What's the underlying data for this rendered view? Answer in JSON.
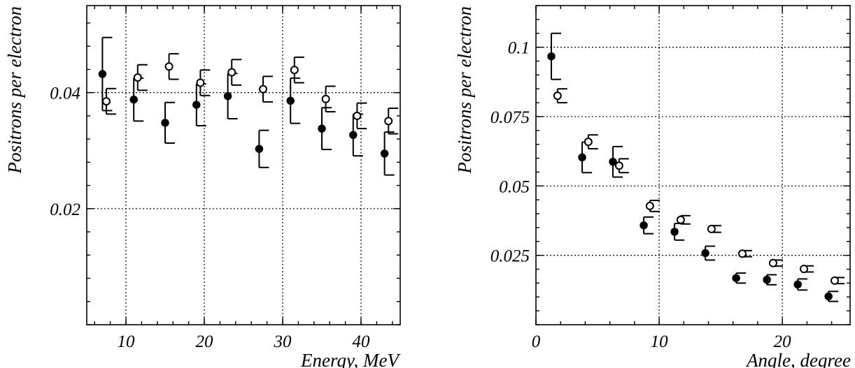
{
  "chart_data": [
    {
      "type": "scatter",
      "title": "",
      "xlabel": "Energy, MeV",
      "ylabel": "Positrons per electron",
      "xlim": [
        5,
        45
      ],
      "ylim": [
        0,
        0.055
      ],
      "x_ticks": [
        10,
        20,
        30,
        40
      ],
      "x_tick_labels": [
        "10",
        "20",
        "30",
        "40"
      ],
      "y_ticks": [
        0.02,
        0.04
      ],
      "y_tick_labels": [
        "0.02",
        "0.04"
      ],
      "grid": true,
      "series": [
        {
          "marker": "filled-circle",
          "points": [
            {
              "x": 7.0,
              "y": 0.0432,
              "err_up": 0.0063,
              "err_down": 0.0063
            },
            {
              "x": 11.0,
              "y": 0.0388,
              "err_up": 0.0037,
              "err_down": 0.0037
            },
            {
              "x": 15.0,
              "y": 0.0348,
              "err_up": 0.0035,
              "err_down": 0.0035
            },
            {
              "x": 19.0,
              "y": 0.0379,
              "err_up": 0.0036,
              "err_down": 0.0036
            },
            {
              "x": 23.0,
              "y": 0.0394,
              "err_up": 0.0039,
              "err_down": 0.0039
            },
            {
              "x": 27.0,
              "y": 0.0303,
              "err_up": 0.0032,
              "err_down": 0.0032
            },
            {
              "x": 31.0,
              "y": 0.0386,
              "err_up": 0.0039,
              "err_down": 0.0039
            },
            {
              "x": 35.0,
              "y": 0.0338,
              "err_up": 0.0036,
              "err_down": 0.0036
            },
            {
              "x": 39.0,
              "y": 0.0327,
              "err_up": 0.0036,
              "err_down": 0.0036
            },
            {
              "x": 43.0,
              "y": 0.0295,
              "err_up": 0.0037,
              "err_down": 0.0037
            }
          ]
        },
        {
          "marker": "open-circle",
          "points": [
            {
              "x": 7.5,
              "y": 0.0385,
              "err_up": 0.0022,
              "err_down": 0.0022
            },
            {
              "x": 11.5,
              "y": 0.0426,
              "err_up": 0.0022,
              "err_down": 0.0022
            },
            {
              "x": 15.5,
              "y": 0.0445,
              "err_up": 0.0022,
              "err_down": 0.0022
            },
            {
              "x": 19.5,
              "y": 0.0417,
              "err_up": 0.0022,
              "err_down": 0.0022
            },
            {
              "x": 23.5,
              "y": 0.0435,
              "err_up": 0.0022,
              "err_down": 0.0022
            },
            {
              "x": 27.5,
              "y": 0.0406,
              "err_up": 0.0022,
              "err_down": 0.0022
            },
            {
              "x": 31.5,
              "y": 0.0439,
              "err_up": 0.0022,
              "err_down": 0.0022
            },
            {
              "x": 35.5,
              "y": 0.0389,
              "err_up": 0.0022,
              "err_down": 0.0022
            },
            {
              "x": 39.5,
              "y": 0.036,
              "err_up": 0.0022,
              "err_down": 0.0022
            },
            {
              "x": 43.5,
              "y": 0.0351,
              "err_up": 0.0022,
              "err_down": 0.0022
            }
          ]
        }
      ]
    },
    {
      "type": "scatter",
      "title": "",
      "xlabel": "Angle, degree",
      "ylabel": "Positrons per electron",
      "xlim": [
        0,
        25.5
      ],
      "ylim": [
        0,
        0.115
      ],
      "x_ticks": [
        0,
        10,
        20
      ],
      "x_tick_labels": [
        "0",
        "10",
        "20"
      ],
      "y_ticks": [
        0.025,
        0.05,
        0.075,
        0.1
      ],
      "y_tick_labels": [
        "0.025",
        "0.05",
        "0.075",
        "0.1"
      ],
      "grid": true,
      "series": [
        {
          "marker": "filled-circle",
          "points": [
            {
              "x": 1.25,
              "y": 0.0967,
              "err_up": 0.0083,
              "err_down": 0.0083
            },
            {
              "x": 3.75,
              "y": 0.0603,
              "err_up": 0.0055,
              "err_down": 0.0055
            },
            {
              "x": 6.25,
              "y": 0.0587,
              "err_up": 0.0055,
              "err_down": 0.0055
            },
            {
              "x": 8.75,
              "y": 0.0358,
              "err_up": 0.003,
              "err_down": 0.003
            },
            {
              "x": 11.25,
              "y": 0.0335,
              "err_up": 0.003,
              "err_down": 0.003
            },
            {
              "x": 13.75,
              "y": 0.0258,
              "err_up": 0.0025,
              "err_down": 0.0025
            },
            {
              "x": 16.25,
              "y": 0.0168,
              "err_up": 0.0018,
              "err_down": 0.0018
            },
            {
              "x": 18.75,
              "y": 0.0162,
              "err_up": 0.0018,
              "err_down": 0.0018
            },
            {
              "x": 21.25,
              "y": 0.0145,
              "err_up": 0.002,
              "err_down": 0.002
            },
            {
              "x": 23.75,
              "y": 0.0102,
              "err_up": 0.0018,
              "err_down": 0.0018
            }
          ]
        },
        {
          "marker": "open-circle",
          "points": [
            {
              "x": 1.75,
              "y": 0.0825,
              "err_up": 0.0025,
              "err_down": 0.0025
            },
            {
              "x": 4.25,
              "y": 0.0659,
              "err_up": 0.0025,
              "err_down": 0.0025
            },
            {
              "x": 6.75,
              "y": 0.0573,
              "err_up": 0.0025,
              "err_down": 0.0025
            },
            {
              "x": 9.25,
              "y": 0.0428,
              "err_up": 0.002,
              "err_down": 0.002
            },
            {
              "x": 11.75,
              "y": 0.0378,
              "err_up": 0.0015,
              "err_down": 0.0015
            },
            {
              "x": 14.25,
              "y": 0.0345,
              "err_up": 0.0012,
              "err_down": 0.0012
            },
            {
              "x": 16.75,
              "y": 0.0256,
              "err_up": 0.0011,
              "err_down": 0.0011
            },
            {
              "x": 19.25,
              "y": 0.0222,
              "err_up": 0.0011,
              "err_down": 0.0011
            },
            {
              "x": 21.75,
              "y": 0.0201,
              "err_up": 0.0011,
              "err_down": 0.0011
            },
            {
              "x": 24.25,
              "y": 0.0159,
              "err_up": 0.0011,
              "err_down": 0.0011
            }
          ]
        }
      ]
    }
  ]
}
